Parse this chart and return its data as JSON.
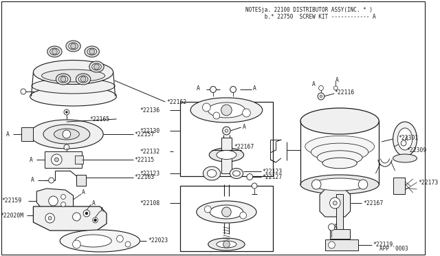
{
  "bg_color": "#ffffff",
  "line_color": "#1a1a1a",
  "label_color": "#333333",
  "notes_line1": "NOTESja. 22100 DISTRIBUTOR ASSY(INC. * )",
  "notes_line2": "      b.* 22750  SCREW KIT ------------ A",
  "app_text": "APP '0003",
  "fs": 5.8,
  "fs_notes": 5.5
}
